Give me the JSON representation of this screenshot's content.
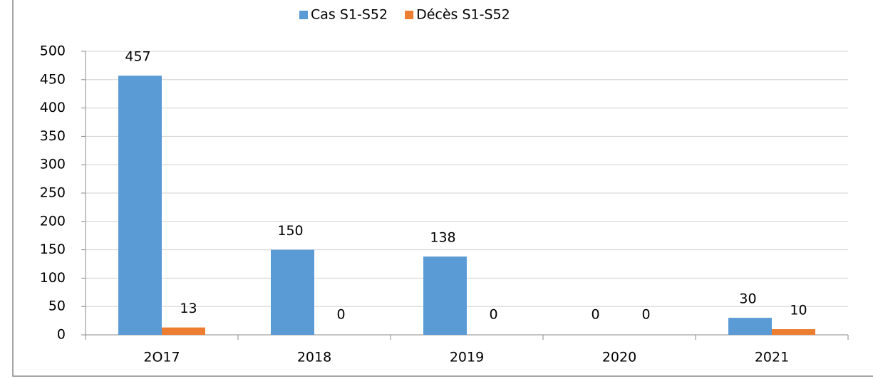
{
  "chart_data": {
    "type": "bar",
    "categories": [
      "2O17",
      "2018",
      "2019",
      "2020",
      "2021"
    ],
    "series": [
      {
        "name": "Cas S1-S52",
        "color": "#5b9bd5",
        "values": [
          457,
          150,
          138,
          0,
          30
        ]
      },
      {
        "name": "Décès S1-S52",
        "color": "#ed7d31",
        "values": [
          13,
          0,
          0,
          0,
          10
        ]
      }
    ],
    "ylim": [
      0,
      500
    ],
    "yticks": [
      0,
      50,
      100,
      150,
      200,
      250,
      300,
      350,
      400,
      450,
      500
    ],
    "grid": true,
    "legend": "top"
  }
}
